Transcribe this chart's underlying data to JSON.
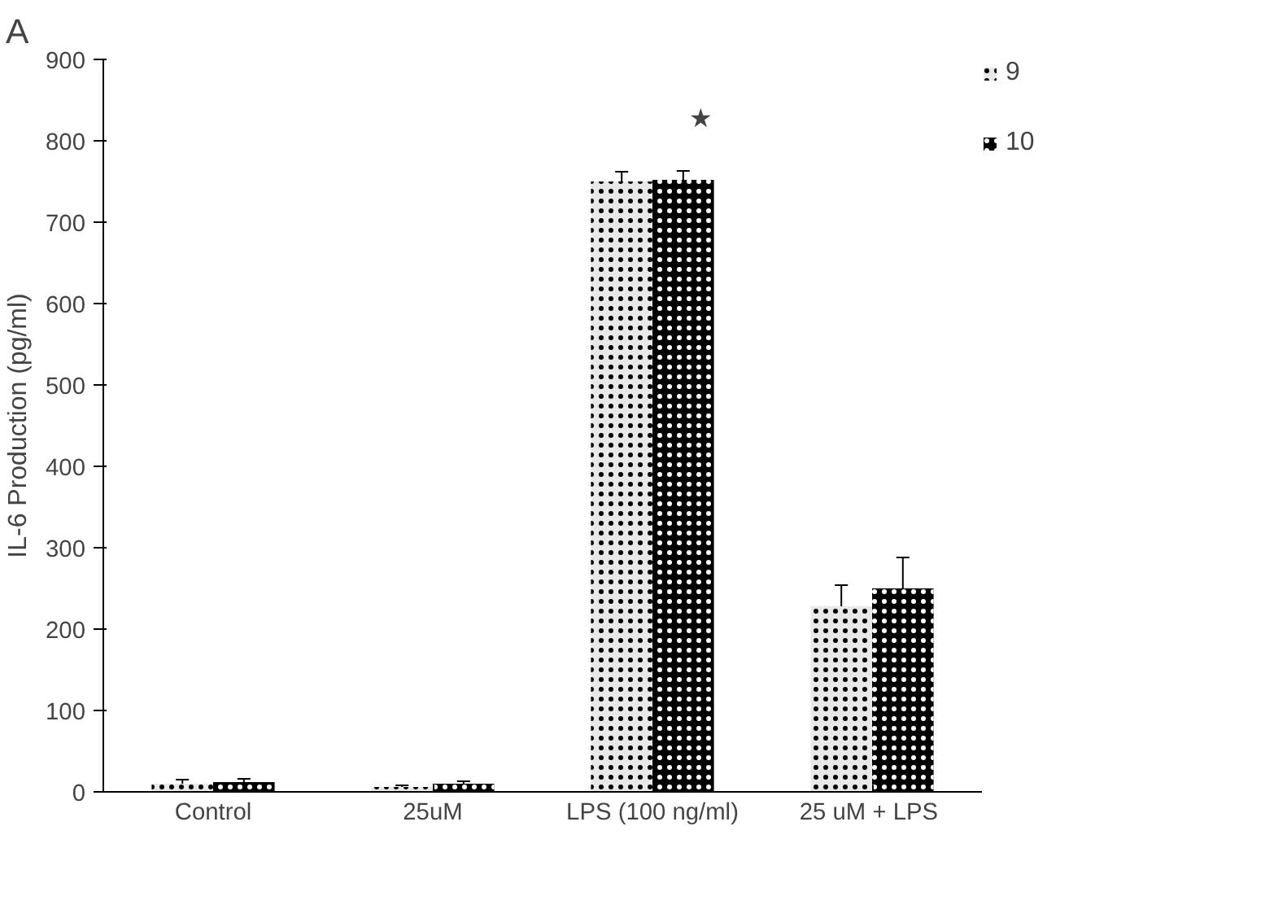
{
  "chart_data": {
    "type": "bar",
    "ylabel": "IL-6 Production (pg/ml)",
    "categories": [
      "Control",
      "25uM",
      "LPS (100 ng/ml)",
      "25  uM + LPS"
    ],
    "series": [
      {
        "name": "9",
        "color": "#e8e8e8",
        "values": [
          10,
          6,
          750,
          228
        ],
        "errors": [
          5,
          2,
          12,
          26
        ]
      },
      {
        "name": "10",
        "color": "#000000",
        "values": [
          12,
          10,
          752,
          250
        ],
        "errors": [
          4,
          3,
          11,
          38
        ]
      }
    ],
    "ylim": [
      0,
      900
    ],
    "yticks": [
      0,
      100,
      200,
      300,
      400,
      500,
      600,
      700,
      800,
      900
    ],
    "grid": false,
    "legend": "right",
    "annotations": [
      "A",
      "★"
    ]
  }
}
